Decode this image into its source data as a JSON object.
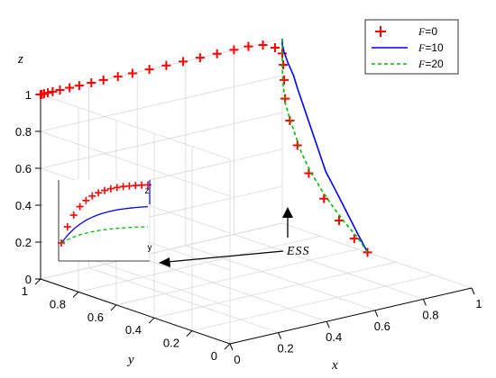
{
  "chart_data": {
    "type": "line",
    "title": "",
    "axes": {
      "x": "x",
      "y": "y",
      "z": "z"
    },
    "ticks": {
      "x": [
        "0",
        "0.2",
        "0.4",
        "0.6",
        "0.8",
        "1"
      ],
      "y": [
        "0",
        "0.2",
        "0.4",
        "0.6",
        "0.8",
        "1"
      ],
      "z": [
        "0",
        "0.2",
        "0.4",
        "0.6",
        "0.8",
        "1"
      ]
    },
    "xlim": [
      0,
      1
    ],
    "ylim": [
      0,
      1
    ],
    "zlim": [
      0,
      1
    ],
    "grid": true,
    "legend_position": "top-right",
    "series": [
      {
        "name_var": "F",
        "name_val": "=0",
        "color": "#ff0000",
        "style": "markers-plus",
        "points": [
          [
            1.0,
            0.55,
            0.0
          ],
          [
            1.0,
            0.62,
            0.05
          ],
          [
            1.0,
            0.7,
            0.12
          ],
          [
            1.0,
            0.78,
            0.21
          ],
          [
            1.0,
            0.86,
            0.32
          ],
          [
            1.0,
            0.92,
            0.45
          ],
          [
            1.0,
            0.96,
            0.57
          ],
          [
            1.0,
            0.985,
            0.68
          ],
          [
            1.0,
            0.99,
            0.78
          ],
          [
            1.0,
            0.995,
            0.86
          ],
          [
            1.0,
            1.0,
            0.92
          ],
          [
            0.97,
            1.0,
            0.96
          ],
          [
            0.92,
            1.0,
            0.99
          ],
          [
            0.86,
            1.0,
            1.0
          ],
          [
            0.8,
            1.0,
            1.0
          ],
          [
            0.73,
            1.0,
            1.0
          ],
          [
            0.66,
            1.0,
            1.0
          ],
          [
            0.59,
            1.0,
            1.0
          ],
          [
            0.52,
            1.0,
            1.0
          ],
          [
            0.45,
            1.0,
            1.0
          ],
          [
            0.38,
            1.0,
            1.0
          ],
          [
            0.32,
            1.0,
            1.0
          ],
          [
            0.26,
            1.0,
            1.0
          ],
          [
            0.21,
            1.0,
            1.0
          ],
          [
            0.16,
            1.0,
            1.0
          ],
          [
            0.12,
            1.0,
            1.0
          ],
          [
            0.08,
            1.0,
            1.0
          ],
          [
            0.05,
            1.0,
            1.0
          ],
          [
            0.03,
            1.0,
            1.0
          ],
          [
            0.015,
            1.0,
            1.0
          ],
          [
            0.005,
            1.0,
            1.0
          ],
          [
            0.0,
            1.0,
            1.0
          ]
        ]
      },
      {
        "name_var": "F",
        "name_val": "=10",
        "color": "#0000ff",
        "style": "solid",
        "points": [
          [
            1.0,
            0.55,
            0.0
          ],
          [
            1.0,
            0.6,
            0.08
          ],
          [
            1.0,
            0.66,
            0.18
          ],
          [
            1.0,
            0.72,
            0.28
          ],
          [
            1.0,
            0.77,
            0.36
          ],
          [
            1.0,
            0.8,
            0.44
          ],
          [
            1.0,
            0.83,
            0.52
          ],
          [
            1.0,
            0.86,
            0.6
          ],
          [
            1.0,
            0.89,
            0.68
          ],
          [
            1.0,
            0.92,
            0.76
          ],
          [
            1.0,
            0.94,
            0.82
          ],
          [
            1.0,
            0.97,
            0.88
          ],
          [
            1.0,
            0.99,
            0.93
          ],
          [
            1.0,
            1.0,
            0.97
          ],
          [
            1.0,
            1.0,
            1.0
          ]
        ]
      },
      {
        "name_var": "F",
        "name_val": "=20",
        "color": "#00bb00",
        "style": "dashed",
        "points": [
          [
            1.0,
            0.55,
            0.0
          ],
          [
            1.0,
            0.6,
            0.06
          ],
          [
            1.0,
            0.67,
            0.12
          ],
          [
            1.0,
            0.73,
            0.18
          ],
          [
            1.0,
            0.79,
            0.25
          ],
          [
            1.0,
            0.85,
            0.33
          ],
          [
            1.0,
            0.9,
            0.42
          ],
          [
            1.0,
            0.93,
            0.5
          ],
          [
            1.0,
            0.96,
            0.58
          ],
          [
            1.0,
            0.985,
            0.66
          ],
          [
            1.0,
            0.995,
            0.75
          ],
          [
            1.0,
            1.0,
            0.85
          ],
          [
            1.0,
            1.0,
            0.92
          ],
          [
            1.0,
            1.0,
            1.0
          ]
        ]
      }
    ],
    "annotations": [
      {
        "text": "ESS"
      }
    ],
    "inset_labels": {
      "z": "z",
      "y": "y"
    }
  }
}
